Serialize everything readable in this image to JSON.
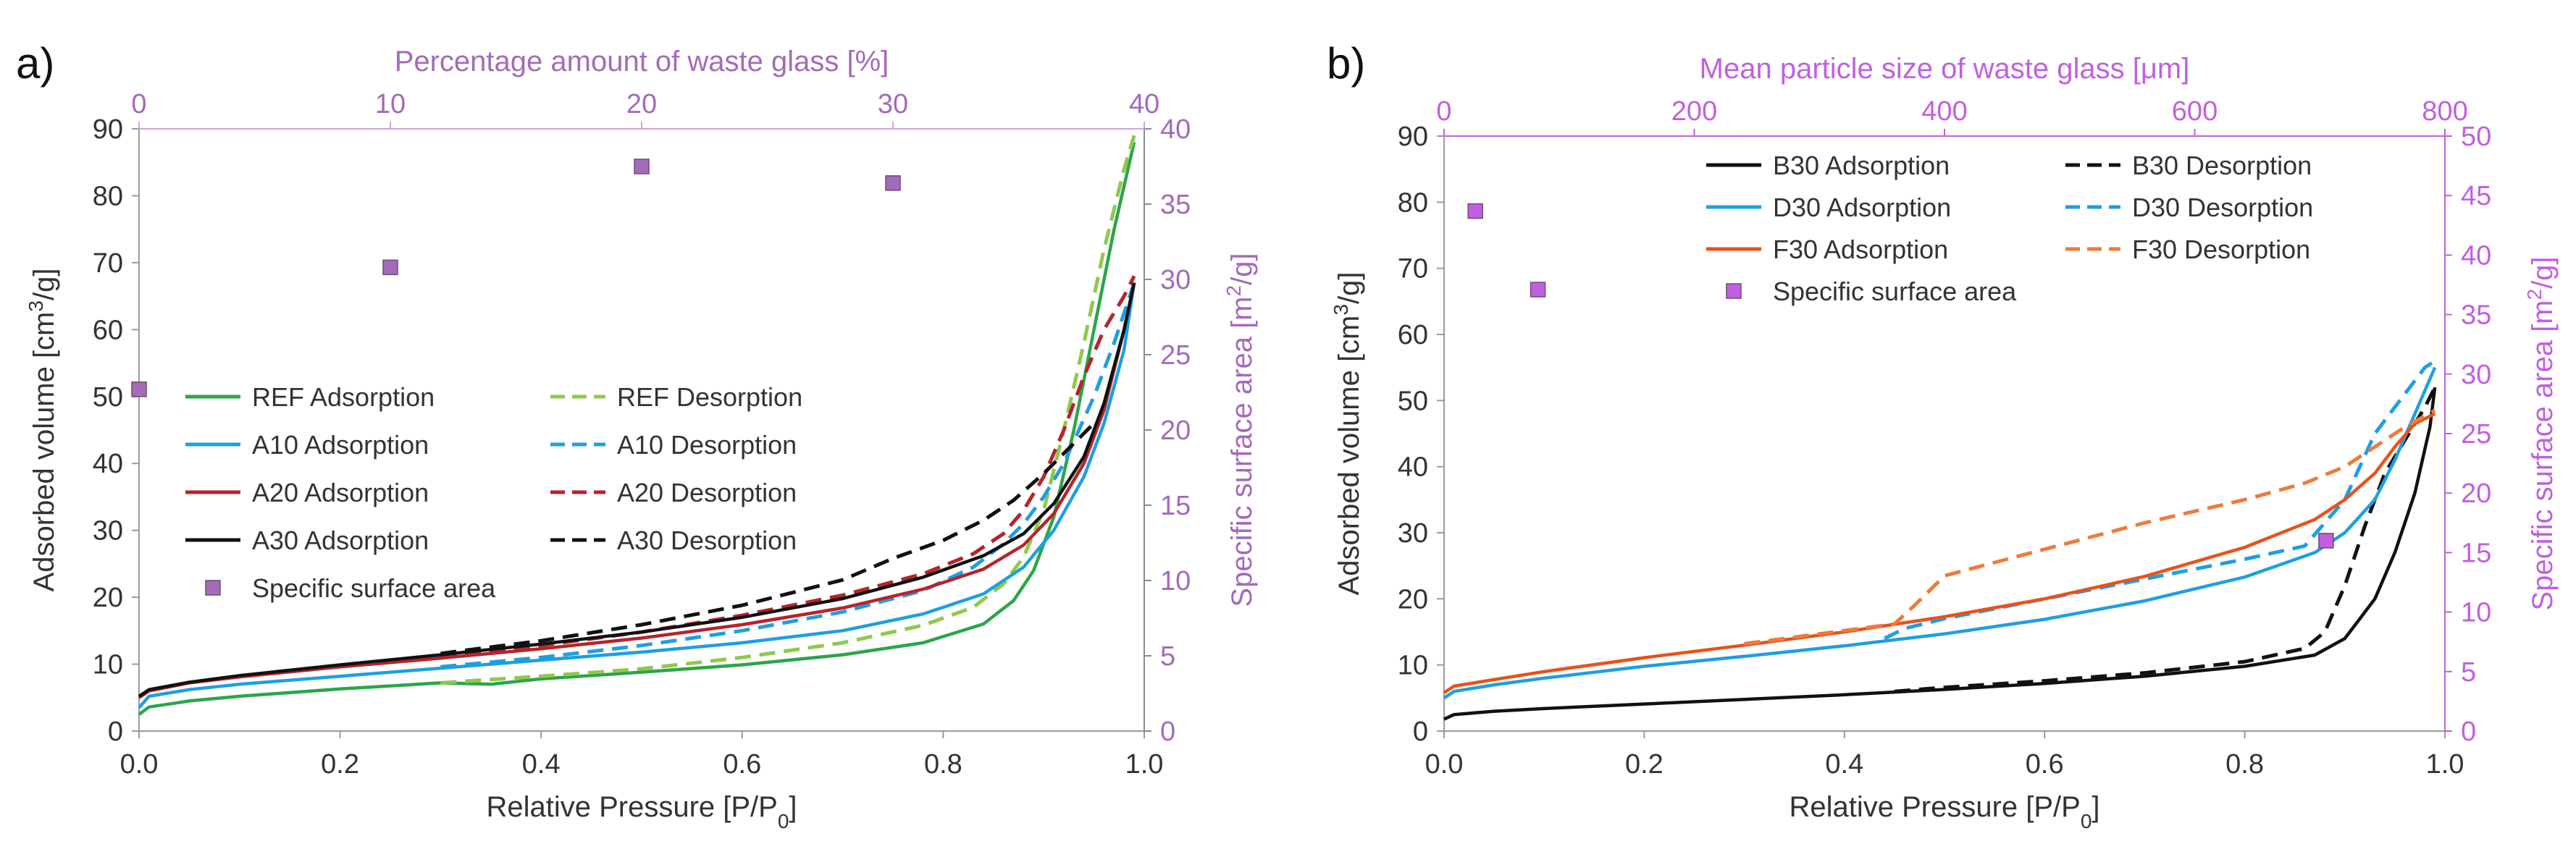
{
  "chart_data": [
    {
      "panel_label": "a)",
      "type": "line",
      "xlabel_main": "Relative Pressure [P/P",
      "xlabel_sub": "0",
      "xlabel_tail": "]",
      "ylabel_left_main": "Adsorbed volume [cm",
      "ylabel_left_sup": "3",
      "ylabel_left_tail": "/g]",
      "ylabel_right_main": "Specific surface area [m",
      "ylabel_right_sup": "2",
      "ylabel_right_tail": "/g]",
      "x2label": "Percentage amount of waste glass [%]",
      "xlim": [
        0,
        1
      ],
      "ylim": [
        0,
        90
      ],
      "y2lim": [
        0,
        40
      ],
      "x2lim": [
        0,
        40
      ],
      "xticks": [
        "0.0",
        "0.2",
        "0.4",
        "0.6",
        "0.8",
        "1.0"
      ],
      "yticks": [
        "0",
        "10",
        "20",
        "30",
        "40",
        "50",
        "60",
        "70",
        "80",
        "90"
      ],
      "y2ticks": [
        "0",
        "5",
        "10",
        "15",
        "20",
        "25",
        "30",
        "35",
        "40"
      ],
      "x2ticks": [
        "0",
        "10",
        "20",
        "30",
        "40"
      ],
      "series": [
        {
          "name": "REF Adsorption",
          "color": "#2ca54a",
          "dash": false,
          "x": [
            0,
            0.01,
            0.05,
            0.1,
            0.2,
            0.3,
            0.35,
            0.4,
            0.5,
            0.6,
            0.7,
            0.78,
            0.84,
            0.87,
            0.89,
            0.91,
            0.93,
            0.95,
            0.97,
            0.99
          ],
          "y": [
            2.5,
            3.6,
            4.5,
            5.2,
            6.3,
            7.2,
            7.0,
            7.8,
            8.8,
            9.9,
            11.4,
            13.2,
            16,
            19.5,
            24,
            32,
            45,
            60,
            75,
            88
          ]
        },
        {
          "name": "REF Desorption",
          "color": "#8fc94a",
          "dash": true,
          "x": [
            0.3,
            0.4,
            0.5,
            0.6,
            0.7,
            0.78,
            0.83,
            0.86,
            0.88,
            0.9,
            0.92,
            0.94,
            0.96,
            0.98,
            0.99
          ],
          "y": [
            7.2,
            8.2,
            9.3,
            11,
            13.2,
            15.8,
            18.5,
            22,
            26,
            33,
            45,
            58,
            72,
            84,
            89
          ]
        },
        {
          "name": "A10 Adsorption",
          "color": "#1e9fe0",
          "dash": false,
          "x": [
            0,
            0.01,
            0.05,
            0.1,
            0.2,
            0.3,
            0.4,
            0.5,
            0.6,
            0.7,
            0.78,
            0.84,
            0.88,
            0.91,
            0.94,
            0.96,
            0.98,
            0.99
          ],
          "y": [
            3.5,
            5.2,
            6.2,
            7.0,
            8.2,
            9.4,
            10.6,
            11.8,
            13.2,
            15.0,
            17.5,
            20.5,
            24.5,
            30,
            38,
            46,
            57,
            67
          ]
        },
        {
          "name": "A10 Desorption",
          "color": "#1e9fe0",
          "dash": true,
          "x": [
            0.3,
            0.4,
            0.5,
            0.6,
            0.7,
            0.78,
            0.83,
            0.86,
            0.88,
            0.9,
            0.92,
            0.95,
            0.97,
            0.99
          ],
          "y": [
            9.6,
            11,
            12.8,
            15,
            17.8,
            21,
            24.5,
            28,
            31,
            35,
            40,
            50,
            58,
            67
          ]
        },
        {
          "name": "A20 Adsorption",
          "color": "#b5242c",
          "dash": false,
          "x": [
            0,
            0.01,
            0.05,
            0.1,
            0.2,
            0.3,
            0.4,
            0.5,
            0.6,
            0.7,
            0.78,
            0.84,
            0.88,
            0.91,
            0.94,
            0.96,
            0.98,
            0.99
          ],
          "y": [
            5.0,
            6.0,
            7.2,
            8.1,
            9.6,
            10.9,
            12.3,
            13.9,
            15.9,
            18.4,
            21.2,
            24.2,
            27.8,
            32.5,
            40,
            48,
            60,
            67
          ]
        },
        {
          "name": "A20 Desorption",
          "color": "#b5242c",
          "dash": true,
          "x": [
            0.3,
            0.4,
            0.5,
            0.6,
            0.7,
            0.78,
            0.83,
            0.86,
            0.88,
            0.9,
            0.92,
            0.94,
            0.96,
            0.98,
            0.99
          ],
          "y": [
            11,
            12.8,
            14.8,
            17.3,
            20.3,
            23.5,
            26.5,
            29.5,
            33,
            38,
            45,
            53,
            60,
            65,
            68
          ]
        },
        {
          "name": "A30 Adsorption",
          "color": "#111111",
          "dash": false,
          "x": [
            0,
            0.01,
            0.05,
            0.1,
            0.2,
            0.3,
            0.4,
            0.5,
            0.6,
            0.7,
            0.78,
            0.84,
            0.88,
            0.91,
            0.94,
            0.96,
            0.98,
            0.99
          ],
          "y": [
            5.2,
            6.2,
            7.3,
            8.3,
            9.9,
            11.4,
            13.0,
            14.8,
            17.0,
            19.8,
            23.0,
            26.2,
            29.5,
            34,
            41,
            49,
            60,
            67
          ]
        },
        {
          "name": "A30 Desorption",
          "color": "#111111",
          "dash": true,
          "x": [
            0.3,
            0.4,
            0.5,
            0.6,
            0.7,
            0.75,
            0.8,
            0.84,
            0.87,
            0.9,
            0.93,
            0.95
          ],
          "y": [
            11.6,
            13.5,
            15.9,
            18.8,
            22.6,
            25.8,
            28.5,
            31.5,
            34.5,
            38.5,
            43,
            46
          ]
        }
      ],
      "scatter": {
        "name": "Specific surface area",
        "color": "#a36bb8",
        "x2": [
          0,
          10,
          20,
          30
        ],
        "y2": [
          22.7,
          30.8,
          37.5,
          36.4
        ]
      },
      "legend": {
        "placement": "center-left",
        "left_column": [
          "REF Adsorption",
          "A10 Adsorption",
          "A20 Adsorption",
          "A30 Adsorption",
          "Specific surface area"
        ],
        "right_column": [
          "REF Desorption",
          "A10 Desorption",
          "A20 Desorption",
          "A30 Desorption"
        ]
      }
    },
    {
      "panel_label": "b)",
      "type": "line",
      "xlabel_main": "Relative Pressure [P/P",
      "xlabel_sub": "0",
      "xlabel_tail": "]",
      "ylabel_left_main": "Adsorbed volume [cm",
      "ylabel_left_sup": "3",
      "ylabel_left_tail": "/g]",
      "ylabel_right_main": "Specific surface area [m",
      "ylabel_right_sup": "2",
      "ylabel_right_tail": "/g]",
      "x2label": "Mean particle size of waste glass [μm]",
      "xlim": [
        0,
        1
      ],
      "ylim": [
        0,
        90
      ],
      "y2lim": [
        0,
        50
      ],
      "x2lim": [
        0,
        800
      ],
      "xticks": [
        "0.0",
        "0.2",
        "0.4",
        "0.6",
        "0.8",
        "1.0"
      ],
      "yticks": [
        "0",
        "10",
        "20",
        "30",
        "40",
        "50",
        "60",
        "70",
        "80",
        "90"
      ],
      "y2ticks": [
        "0",
        "5",
        "10",
        "15",
        "20",
        "25",
        "30",
        "35",
        "40",
        "45",
        "50"
      ],
      "x2ticks": [
        "0",
        "200",
        "400",
        "600",
        "800"
      ],
      "series": [
        {
          "name": "B30 Adsorption",
          "color": "#111111",
          "dash": false,
          "x": [
            0,
            0.01,
            0.05,
            0.1,
            0.2,
            0.3,
            0.4,
            0.5,
            0.6,
            0.7,
            0.8,
            0.87,
            0.9,
            0.93,
            0.95,
            0.97,
            0.985,
            0.99
          ],
          "y": [
            1.8,
            2.5,
            3.0,
            3.4,
            4.1,
            4.8,
            5.5,
            6.3,
            7.2,
            8.3,
            9.8,
            11.5,
            14,
            20,
            27,
            36,
            46,
            52
          ]
        },
        {
          "name": "B30 Desorption",
          "color": "#111111",
          "dash": true,
          "x": [
            0.45,
            0.5,
            0.6,
            0.7,
            0.8,
            0.86,
            0.88,
            0.9,
            0.92,
            0.94,
            0.96,
            0.98,
            0.99
          ],
          "y": [
            6.0,
            6.6,
            7.6,
            8.8,
            10.5,
            12.5,
            15,
            22,
            31,
            39,
            44,
            49,
            52
          ]
        },
        {
          "name": "D30 Adsorption",
          "color": "#1e9fe0",
          "dash": false,
          "x": [
            0,
            0.01,
            0.05,
            0.1,
            0.2,
            0.3,
            0.4,
            0.5,
            0.6,
            0.7,
            0.8,
            0.87,
            0.9,
            0.93,
            0.95,
            0.97,
            0.99
          ],
          "y": [
            5.0,
            6.0,
            7.0,
            8.0,
            9.8,
            11.3,
            12.9,
            14.7,
            16.9,
            19.7,
            23.3,
            27.0,
            30.0,
            35.0,
            41.0,
            48.0,
            55.0
          ]
        },
        {
          "name": "D30 Desorption",
          "color": "#1e9fe0",
          "dash": true,
          "x": [
            0.44,
            0.46,
            0.5,
            0.6,
            0.7,
            0.8,
            0.86,
            0.9,
            0.93,
            0.96,
            0.98,
            0.99
          ],
          "y": [
            14.0,
            15.5,
            17.0,
            20.0,
            23.0,
            26.0,
            28.0,
            35.0,
            45.0,
            51.0,
            55.0,
            56.0
          ]
        },
        {
          "name": "F30 Adsorption",
          "color": "#e8521c",
          "dash": false,
          "x": [
            0,
            0.01,
            0.05,
            0.1,
            0.2,
            0.3,
            0.4,
            0.5,
            0.6,
            0.7,
            0.8,
            0.87,
            0.9,
            0.93,
            0.95,
            0.97,
            0.99
          ],
          "y": [
            5.8,
            6.8,
            7.8,
            9.0,
            11.1,
            13.0,
            15.0,
            17.3,
            20.0,
            23.4,
            27.8,
            32.0,
            35.0,
            39.0,
            43.0,
            46.5,
            48.0
          ]
        },
        {
          "name": "F30 Desorption",
          "color": "#f07a3c",
          "dash": true,
          "x": [
            0.3,
            0.4,
            0.45,
            0.47,
            0.5,
            0.6,
            0.7,
            0.8,
            0.86,
            0.9,
            0.93,
            0.96,
            0.99
          ],
          "y": [
            13.2,
            15.2,
            16.2,
            19.0,
            23.5,
            27.5,
            31.5,
            35.0,
            37.5,
            40.0,
            43.0,
            46.0,
            48.5
          ]
        }
      ],
      "scatter": {
        "name": "Specific surface area",
        "color": "#c060e0",
        "x2": [
          25,
          75,
          705
        ],
        "y2": [
          43.7,
          37.1,
          16.0
        ]
      },
      "legend": {
        "placement": "top-center",
        "left_column": [
          "B30 Adsorption",
          "D30 Adsorption",
          "F30 Adsorption",
          "Specific surface area"
        ],
        "right_column": [
          "B30 Desorption",
          "D30 Desorption",
          "F30 Desorption"
        ]
      }
    }
  ]
}
